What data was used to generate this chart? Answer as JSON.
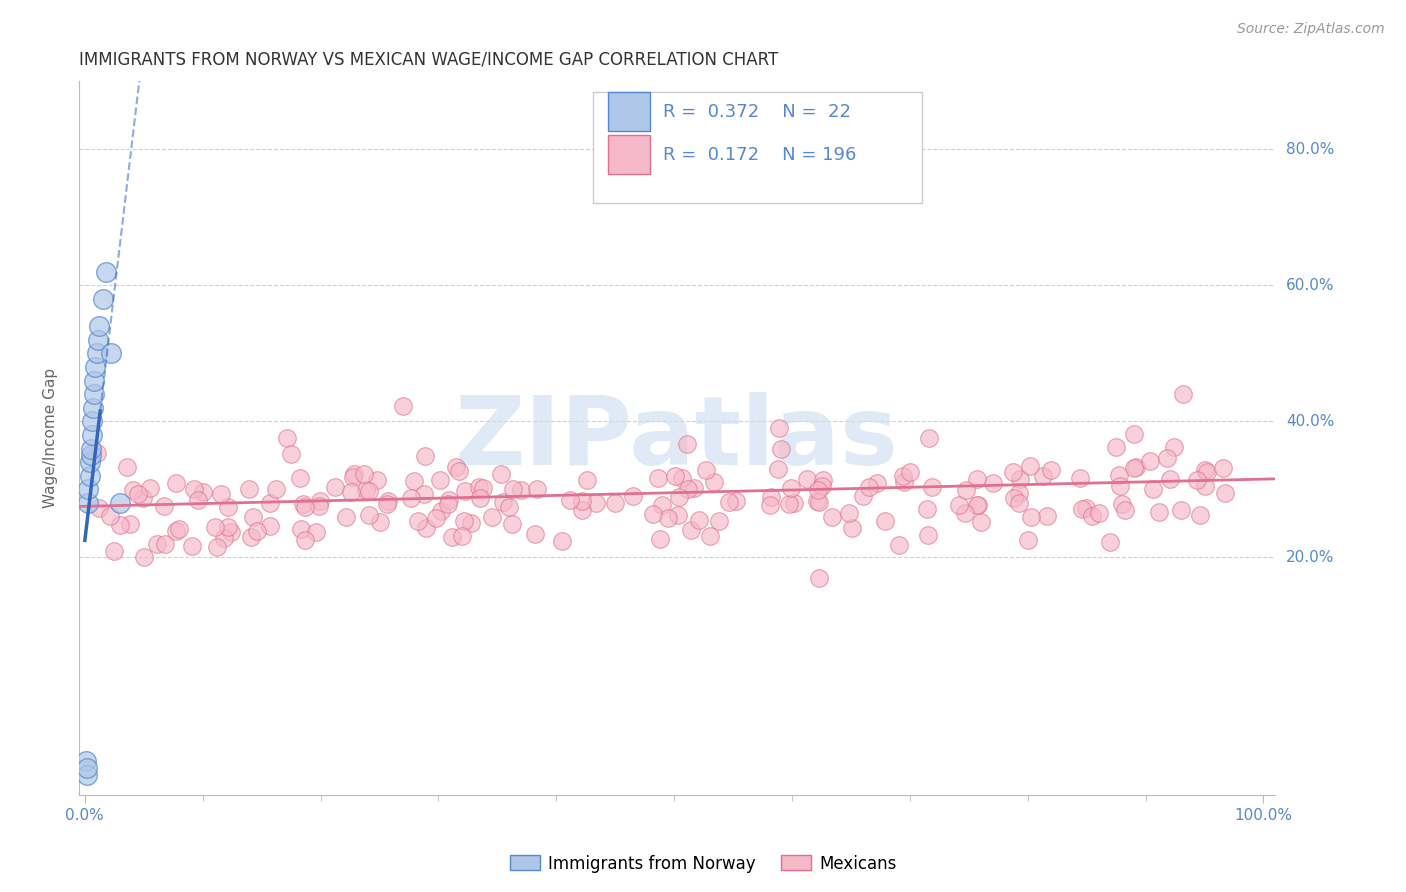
{
  "title": "IMMIGRANTS FROM NORWAY VS MEXICAN WAGE/INCOME GAP CORRELATION CHART",
  "source": "Source: ZipAtlas.com",
  "ylabel": "Wage/Income Gap",
  "watermark": "ZIPatlas",
  "legend1_label": "Immigrants from Norway",
  "legend2_label": "Mexicans",
  "R1": 0.372,
  "N1": 22,
  "R2": 0.172,
  "N2": 196,
  "color_norway_fill": "#aec6e8",
  "color_norway_edge": "#5588cc",
  "color_norway_line": "#3366bb",
  "color_mexico_fill": "#f5b8c8",
  "color_mexico_edge": "#e07090",
  "color_mexico_line": "#e07090",
  "color_axis_text": "#5588cc",
  "color_label": "#666666",
  "color_grid": "#cccccc",
  "color_source": "#999999",
  "color_watermark": "#ccddf0",
  "background_color": "#ffffff",
  "ylim": [
    -0.15,
    0.9
  ],
  "xlim": [
    -0.005,
    1.01
  ],
  "yticks": [
    0.2,
    0.4,
    0.6,
    0.8
  ],
  "ytick_labels": [
    "20.0%",
    "40.0%",
    "60.0%",
    "80.0%"
  ],
  "xtick_minor_count": 9,
  "title_fontsize": 12,
  "source_fontsize": 10,
  "tick_fontsize": 11,
  "legend_fontsize": 13
}
